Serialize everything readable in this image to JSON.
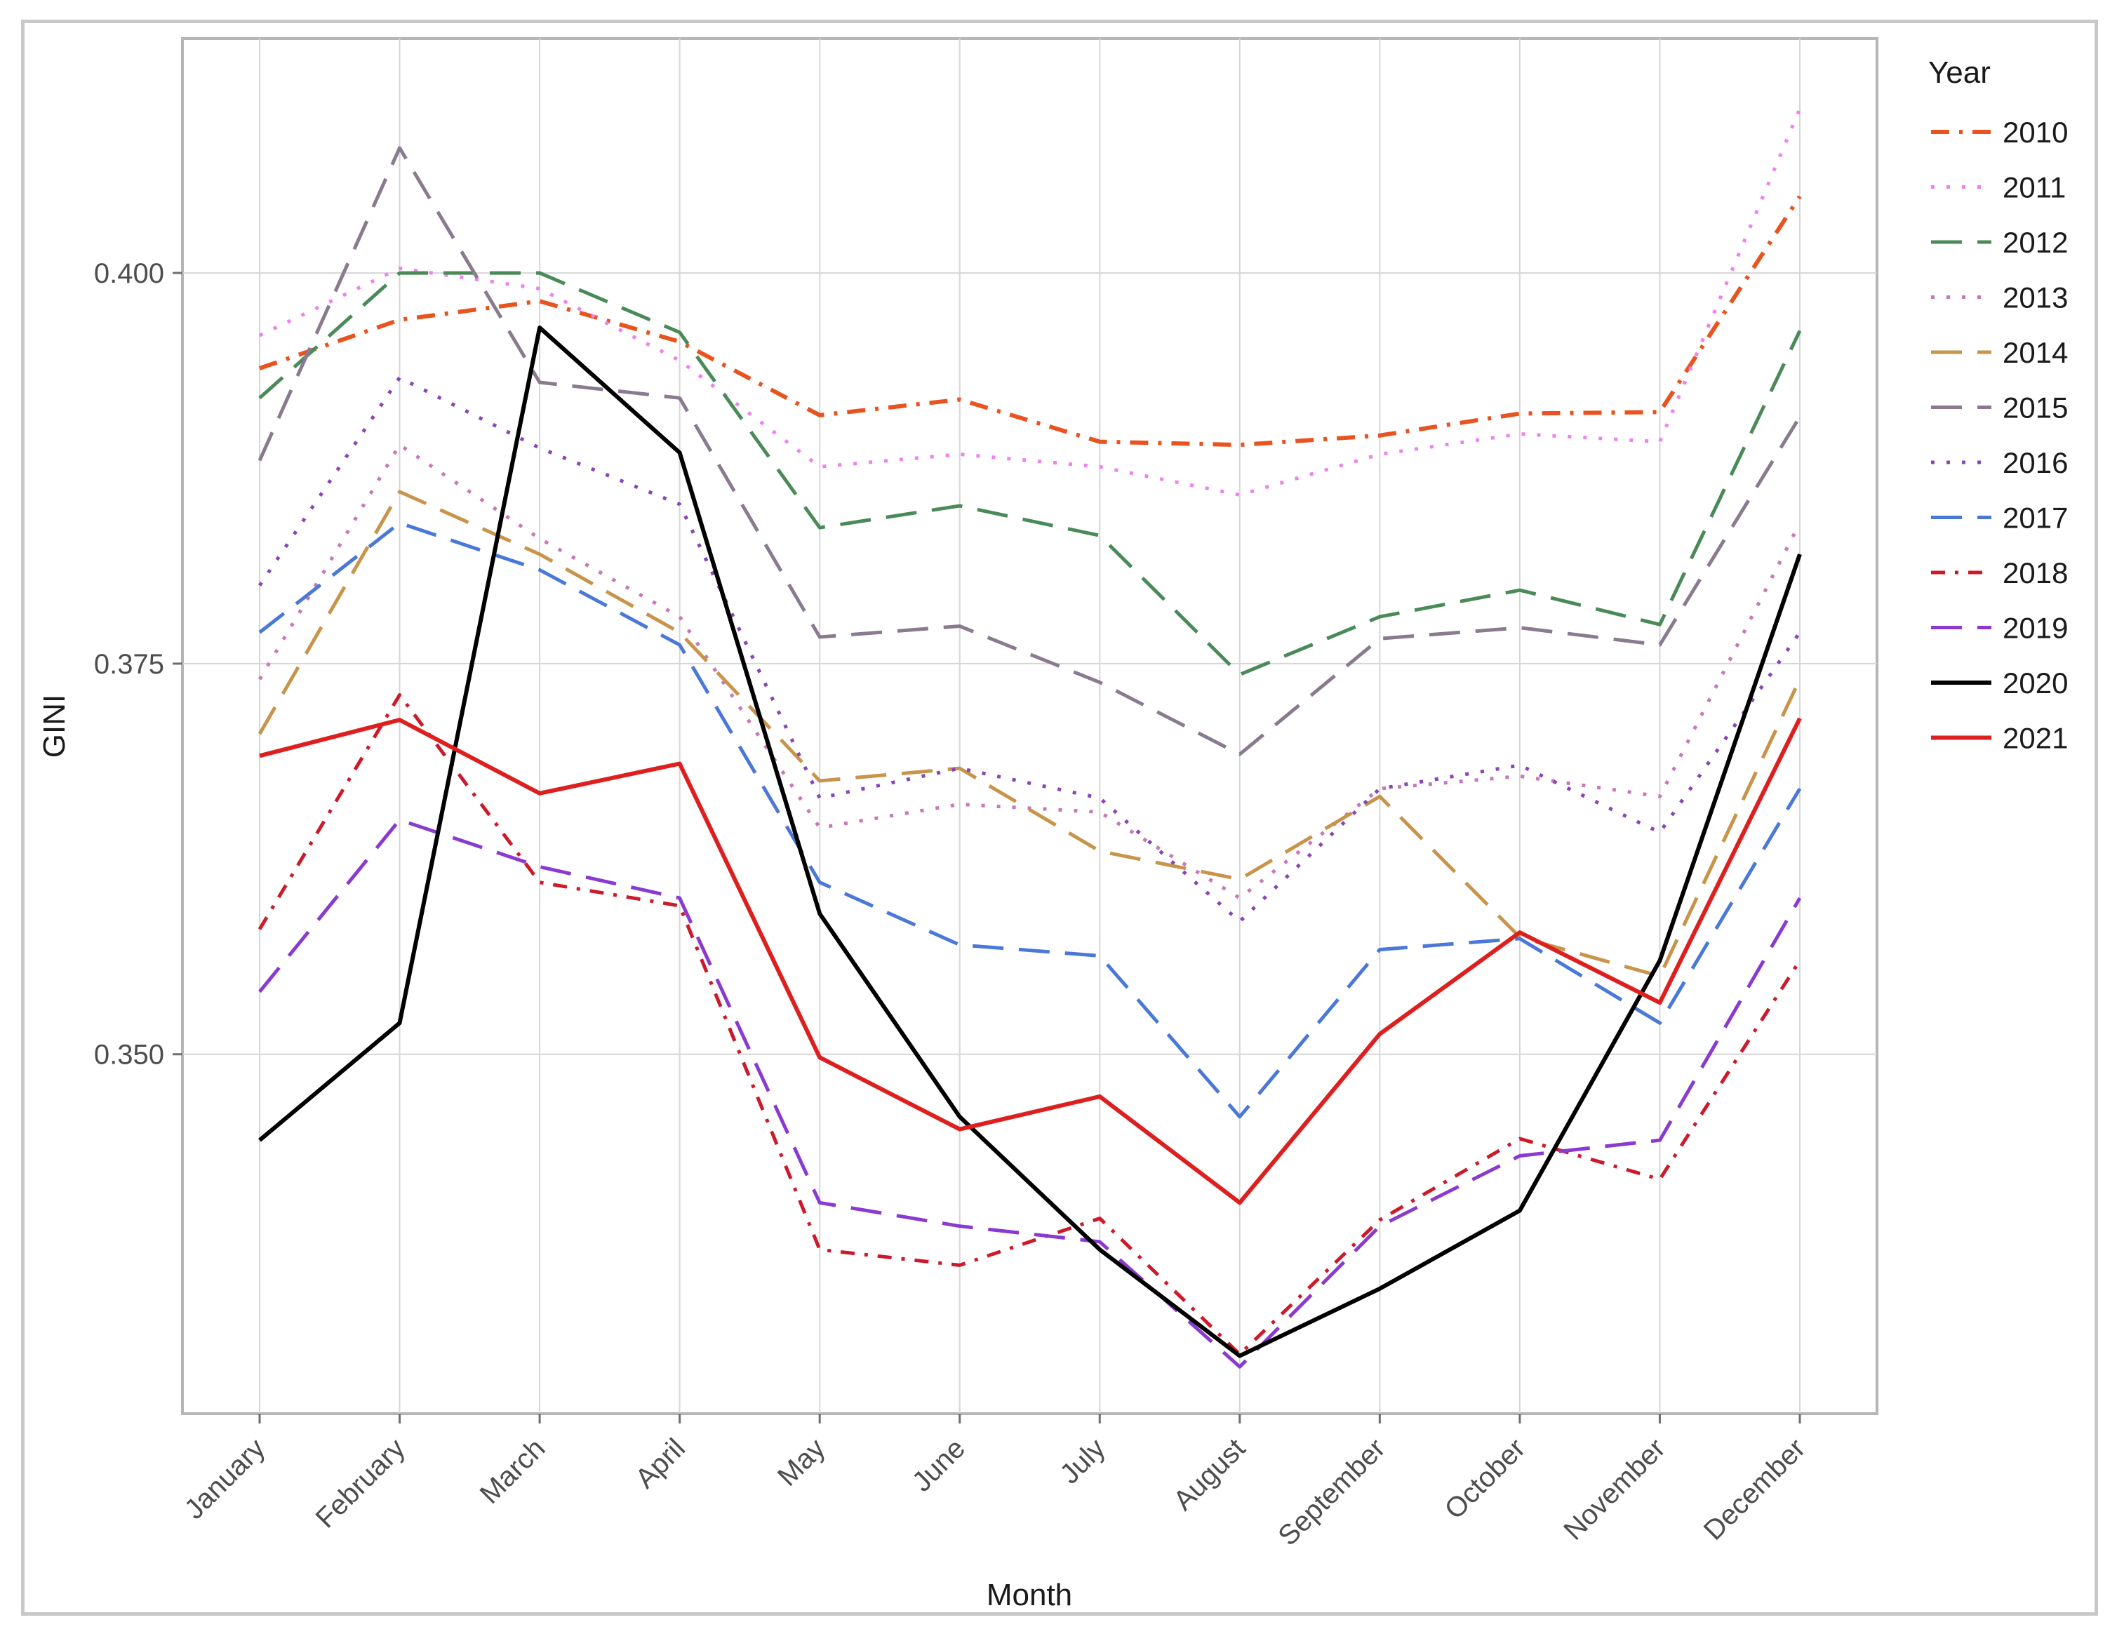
{
  "chart_data": {
    "type": "line",
    "title": "",
    "xlabel": "Month",
    "ylabel": "GINI",
    "ylim": [
      0.327,
      0.415
    ],
    "yticks": [
      0.35,
      0.375,
      0.4
    ],
    "ytick_labels": [
      "0.350",
      "0.375",
      "0.400"
    ],
    "grid": true,
    "legend_title": "Year",
    "legend_position": "right",
    "categories": [
      "January",
      "February",
      "March",
      "April",
      "May",
      "June",
      "July",
      "August",
      "September",
      "October",
      "November",
      "December"
    ],
    "series": [
      {
        "name": "2010",
        "color": "#e8531f",
        "dash": "longdot",
        "width": 6,
        "values": [
          0.3939,
          0.397,
          0.3982,
          0.3956,
          0.3909,
          0.3919,
          0.3892,
          0.389,
          0.3896,
          0.391,
          0.3911,
          0.4049
        ]
      },
      {
        "name": "2011",
        "color": "#ee82ee",
        "dash": "dot",
        "width": 5,
        "values": [
          0.396,
          0.4003,
          0.399,
          0.3944,
          0.3876,
          0.3884,
          0.3876,
          0.3858,
          0.3884,
          0.3897,
          0.3892,
          0.4105
        ]
      },
      {
        "name": "2012",
        "color": "#4a8a58",
        "dash": "long",
        "width": 5,
        "values": [
          0.392,
          0.4,
          0.4,
          0.3962,
          0.3837,
          0.3851,
          0.3832,
          0.3743,
          0.378,
          0.3797,
          0.3775,
          0.3963
        ]
      },
      {
        "name": "2013",
        "color": "#c878b8",
        "dash": "dot",
        "width": 5,
        "values": [
          0.374,
          0.389,
          0.383,
          0.378,
          0.3645,
          0.366,
          0.3655,
          0.36,
          0.367,
          0.3678,
          0.3665,
          0.384
        ]
      },
      {
        "name": "2014",
        "color": "#c8944a",
        "dash": "long",
        "width": 5,
        "values": [
          0.3705,
          0.386,
          0.382,
          0.377,
          0.3675,
          0.3683,
          0.363,
          0.3612,
          0.3665,
          0.3575,
          0.355,
          0.374
        ]
      },
      {
        "name": "2015",
        "color": "#8a7a90",
        "dash": "long",
        "width": 5,
        "values": [
          0.388,
          0.408,
          0.393,
          0.392,
          0.3767,
          0.3774,
          0.3738,
          0.3692,
          0.3766,
          0.3773,
          0.3762,
          0.3908
        ]
      },
      {
        "name": "2016",
        "color": "#8a44b8",
        "dash": "dot",
        "width": 5,
        "values": [
          0.38,
          0.3933,
          0.3888,
          0.3852,
          0.3664,
          0.3683,
          0.3664,
          0.3585,
          0.367,
          0.3685,
          0.3642,
          0.377
        ]
      },
      {
        "name": "2017",
        "color": "#4a78d8",
        "dash": "long",
        "width": 5,
        "values": [
          0.377,
          0.384,
          0.381,
          0.3762,
          0.361,
          0.357,
          0.3563,
          0.346,
          0.3567,
          0.3574,
          0.352,
          0.367
        ]
      },
      {
        "name": "2018",
        "color": "#cc1a2a",
        "dash": "dotdash",
        "width": 5,
        "values": [
          0.358,
          0.373,
          0.361,
          0.3595,
          0.3375,
          0.3365,
          0.3395,
          0.3308,
          0.3394,
          0.3446,
          0.342,
          0.356
        ]
      },
      {
        "name": "2019",
        "color": "#8a3ad0",
        "dash": "long",
        "width": 5,
        "values": [
          0.354,
          0.365,
          0.362,
          0.36,
          0.3405,
          0.339,
          0.338,
          0.33,
          0.339,
          0.3435,
          0.3445,
          0.36
        ]
      },
      {
        "name": "2020",
        "color": "#000000",
        "dash": "solid",
        "width": 6,
        "values": [
          0.3445,
          0.352,
          0.3965,
          0.3885,
          0.359,
          0.346,
          0.3375,
          0.3307,
          0.335,
          0.34,
          0.356,
          0.382
        ]
      },
      {
        "name": "2021",
        "color": "#dd1f1f",
        "dash": "solid",
        "width": 6,
        "values": [
          0.3691,
          0.3714,
          0.3667,
          0.3686,
          0.3498,
          0.3452,
          0.3473,
          0.3405,
          0.3513,
          0.3578,
          0.3533,
          0.3715
        ]
      }
    ]
  }
}
